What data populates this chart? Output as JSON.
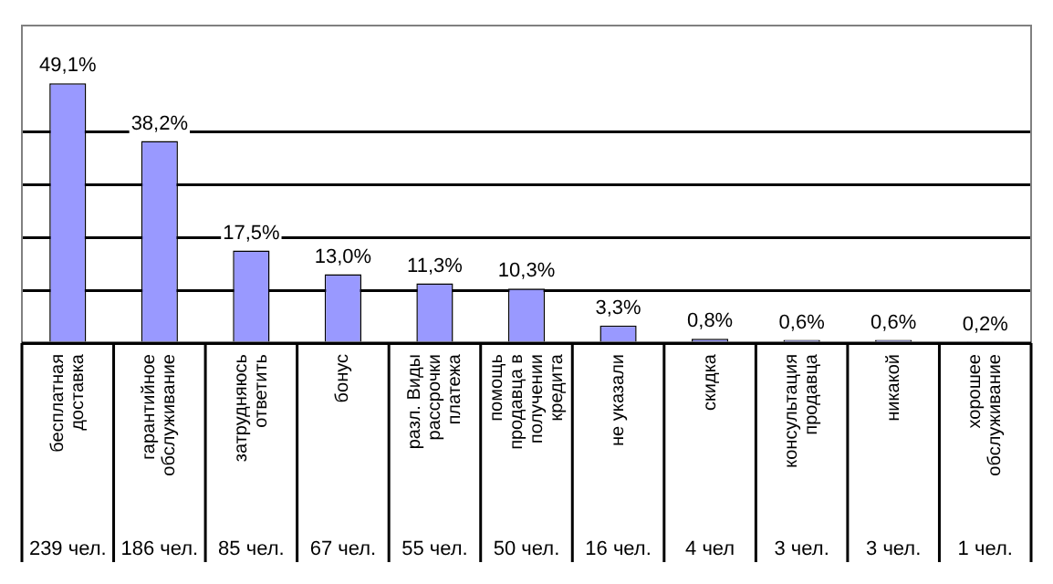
{
  "chart_data": {
    "type": "bar",
    "categories": [
      "бесплатная доставка",
      "гарантийное обслуживание",
      "затрудняюсь ответить",
      "бонус",
      "разл. Виды рассрочки платежа",
      "помощь продавца в получении кредита",
      "не указали",
      "скидка",
      "консультация продавца",
      "никакой",
      "хорошее обслуживание"
    ],
    "values": [
      49.1,
      38.2,
      17.5,
      13.0,
      11.3,
      10.3,
      3.3,
      0.8,
      0.6,
      0.6,
      0.2
    ],
    "value_labels": [
      "49,1%",
      "38,2%",
      "17,5%",
      "13,0%",
      "11,3%",
      "10,3%",
      "3,3%",
      "0,8%",
      "0,6%",
      "0,6%",
      "0,2%"
    ],
    "color": "#9999ff",
    "ylim": [
      0,
      60
    ],
    "yticks": [
      {
        "value": 0,
        "label": null
      },
      {
        "value": 10,
        "label": null
      },
      {
        "value": 20,
        "label": null
      },
      {
        "value": 30,
        "label": null
      },
      {
        "value": 40,
        "label": null
      }
    ],
    "grid": "y",
    "legend": false,
    "tick_labels": "x",
    "annotations": [
      "239 чел.",
      "186 чел.",
      "85 чел.",
      "67 чел.",
      "55 чел.",
      "50 чел.",
      "16 чел.",
      "4 чел",
      "3 чел.",
      "3 чел.",
      "1 чел."
    ]
  }
}
